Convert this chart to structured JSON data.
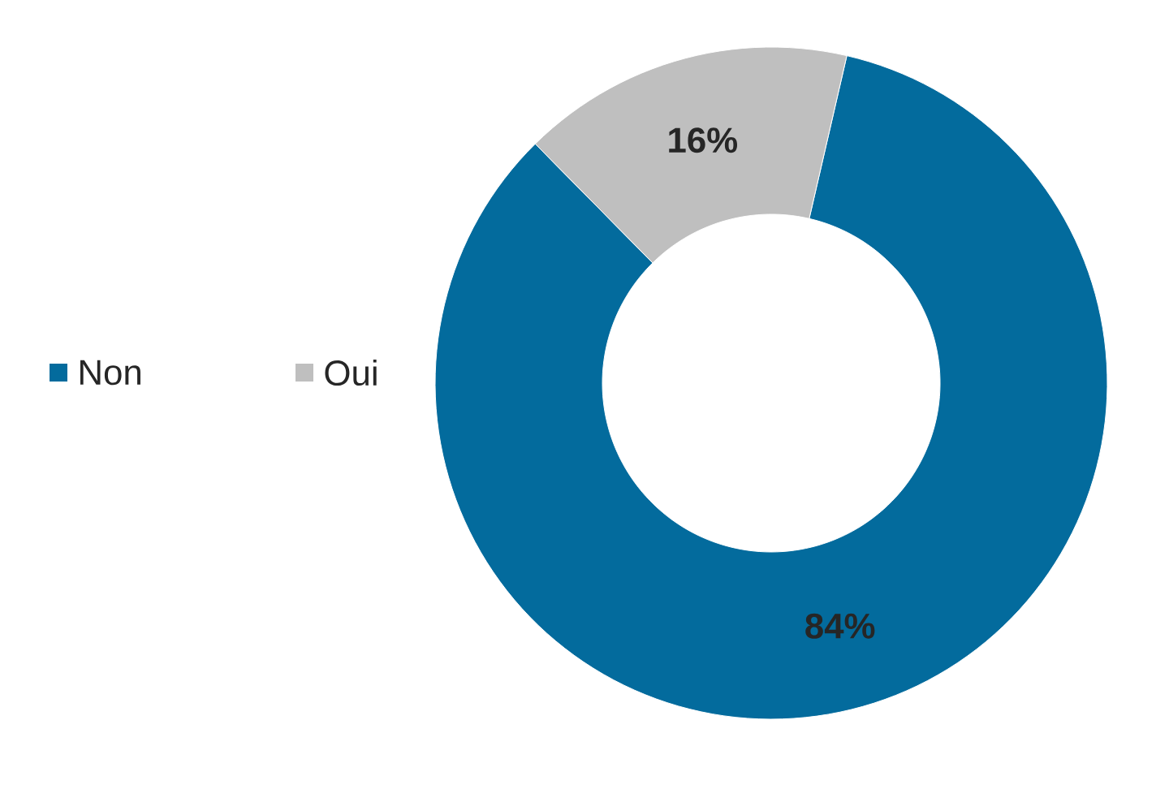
{
  "chart_data": {
    "type": "donut",
    "categories": [
      "Non",
      "Oui"
    ],
    "values": [
      84,
      16
    ],
    "colors": [
      "#036b9d",
      "#bfbfbf"
    ],
    "value_labels": [
      "84%",
      "16%"
    ],
    "legend": "left"
  }
}
